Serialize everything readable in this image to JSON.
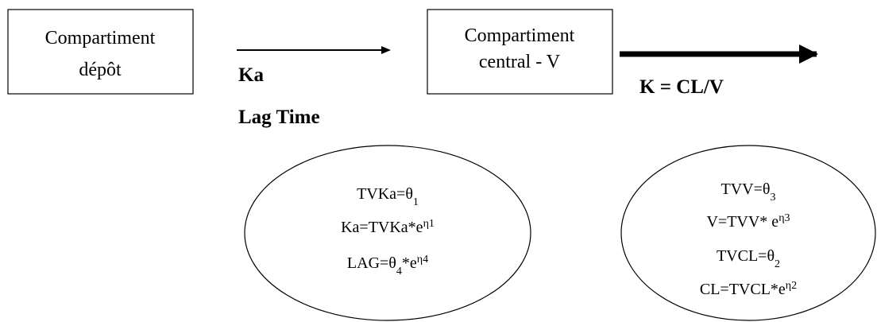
{
  "boxes": [
    {
      "lines": [
        "Compartiment",
        "dépôt"
      ]
    },
    {
      "lines": [
        "Compartiment",
        "central - V"
      ]
    }
  ],
  "arrow_labels": {
    "absorption": [
      "Ka",
      "Lag Time"
    ],
    "elimination": "K = CL/V"
  },
  "ellipses": [
    {
      "lines": [
        [
          {
            "text": "TVKa=θ"
          },
          {
            "sub": "1"
          }
        ],
        [
          {
            "text": "Ka=TVKa*e"
          },
          {
            "sup": "η1"
          }
        ],
        [
          {
            "text": "LAG=θ"
          },
          {
            "sub": "4"
          },
          {
            "text": "*e"
          },
          {
            "sup": "η4"
          }
        ]
      ]
    },
    {
      "lines": [
        [
          {
            "text": "TVV=θ"
          },
          {
            "sub": "3"
          }
        ],
        [
          {
            "text": "V=TVV* e"
          },
          {
            "sup": "η3"
          }
        ],
        [
          {
            "text": "TVCL=θ"
          },
          {
            "sub": "2"
          }
        ],
        [
          {
            "text": "CL=TVCL*e"
          },
          {
            "sup": "η2"
          }
        ]
      ]
    }
  ]
}
